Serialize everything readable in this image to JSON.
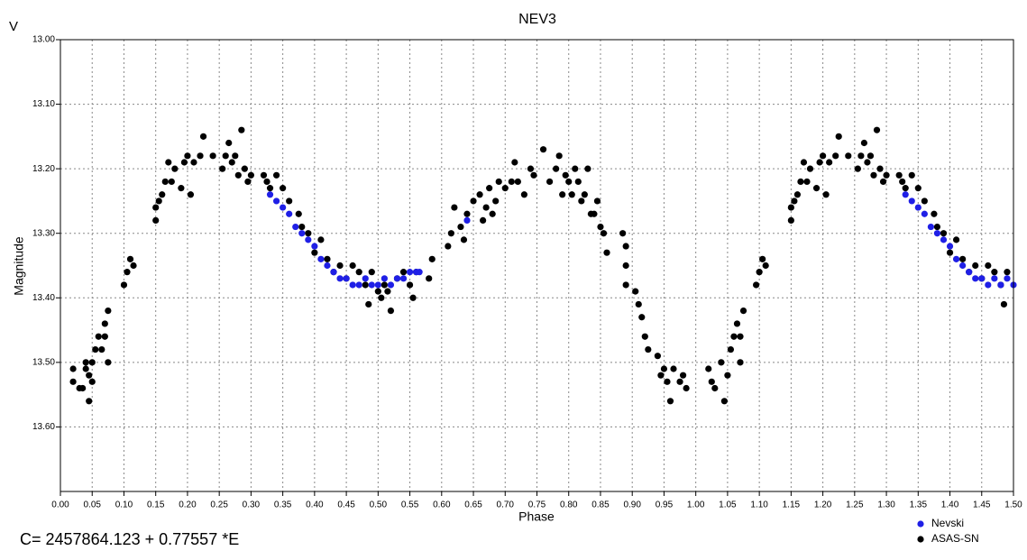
{
  "chart_data": {
    "type": "scatter",
    "title": "NEV3",
    "corner_label": "V",
    "xlabel": "Phase",
    "ylabel": "Magnitude",
    "annotation": "C= 2457864.123 + 0.77557 *E",
    "xlim": [
      0,
      1.5
    ],
    "ylim": [
      13.0,
      13.7
    ],
    "y_inverted": true,
    "grid": true,
    "legend": "bottom-right",
    "xticks": [
      {
        "value": 0,
        "label": "0.00"
      },
      {
        "value": 0.05,
        "label": "0.05"
      },
      {
        "value": 0.1,
        "label": "0.10"
      },
      {
        "value": 0.15,
        "label": "0.15"
      },
      {
        "value": 0.2,
        "label": "0.20"
      },
      {
        "value": 0.25,
        "label": "0.25"
      },
      {
        "value": 0.3,
        "label": "0.30"
      },
      {
        "value": 0.35,
        "label": "0.35"
      },
      {
        "value": 0.4,
        "label": "0.40"
      },
      {
        "value": 0.45,
        "label": "0.45"
      },
      {
        "value": 0.5,
        "label": "0.50"
      },
      {
        "value": 0.55,
        "label": "0.55"
      },
      {
        "value": 0.6,
        "label": "0.60"
      },
      {
        "value": 0.65,
        "label": "0.65"
      },
      {
        "value": 0.7,
        "label": "0.70"
      },
      {
        "value": 0.75,
        "label": "0.75"
      },
      {
        "value": 0.8,
        "label": "0.80"
      },
      {
        "value": 0.85,
        "label": "0.85"
      },
      {
        "value": 0.9,
        "label": "0.90"
      },
      {
        "value": 0.95,
        "label": "0.95"
      },
      {
        "value": 1.0,
        "label": "1.00"
      },
      {
        "value": 1.05,
        "label": "1.05"
      },
      {
        "value": 1.1,
        "label": "1.10"
      },
      {
        "value": 1.15,
        "label": "1.15"
      },
      {
        "value": 1.2,
        "label": "1.20"
      },
      {
        "value": 1.25,
        "label": "1.25"
      },
      {
        "value": 1.3,
        "label": "1.30"
      },
      {
        "value": 1.35,
        "label": "1.35"
      },
      {
        "value": 1.4,
        "label": "1.40"
      },
      {
        "value": 1.45,
        "label": "1.45"
      },
      {
        "value": 1.5,
        "label": "1.50"
      }
    ],
    "yticks": [
      {
        "value": 13.0,
        "label": "13.00"
      },
      {
        "value": 13.1,
        "label": "13.10"
      },
      {
        "value": 13.2,
        "label": "13.20"
      },
      {
        "value": 13.3,
        "label": "13.30"
      },
      {
        "value": 13.4,
        "label": "13.40"
      },
      {
        "value": 13.5,
        "label": "13.50"
      },
      {
        "value": 13.6,
        "label": "13.60"
      }
    ],
    "series": [
      {
        "name": "Nevski",
        "color": "#1f1fe6",
        "x": [
          0.33,
          0.34,
          0.35,
          0.36,
          0.37,
          0.38,
          0.39,
          0.4,
          0.41,
          0.42,
          0.43,
          0.44,
          0.45,
          0.46,
          0.47,
          0.48,
          0.49,
          0.5,
          0.51,
          0.52,
          0.53,
          0.54,
          0.55,
          0.56,
          0.565,
          0.64,
          1.33,
          1.34,
          1.35,
          1.36,
          1.37,
          1.38,
          1.39,
          1.4,
          1.41,
          1.42,
          1.43,
          1.44,
          1.45,
          1.46,
          1.47,
          1.48,
          1.49,
          1.5
        ],
        "values": [
          13.24,
          13.25,
          13.26,
          13.27,
          13.29,
          13.3,
          13.31,
          13.32,
          13.34,
          13.35,
          13.36,
          13.37,
          13.37,
          13.38,
          13.38,
          13.37,
          13.38,
          13.38,
          13.37,
          13.38,
          13.37,
          13.37,
          13.36,
          13.36,
          13.36,
          13.28,
          13.24,
          13.25,
          13.26,
          13.27,
          13.29,
          13.3,
          13.31,
          13.32,
          13.34,
          13.35,
          13.36,
          13.37,
          13.37,
          13.38,
          13.37,
          13.38,
          13.37,
          13.38
        ]
      },
      {
        "name": "ASAS-SN",
        "color": "#000000",
        "x": [
          0.02,
          0.02,
          0.03,
          0.035,
          0.04,
          0.04,
          0.045,
          0.045,
          0.05,
          0.05,
          0.055,
          0.06,
          0.065,
          0.07,
          0.07,
          0.075,
          0.075,
          0.1,
          0.105,
          0.11,
          0.115,
          0.15,
          0.15,
          0.155,
          0.16,
          0.165,
          0.17,
          0.175,
          0.18,
          0.19,
          0.195,
          0.2,
          0.205,
          0.21,
          0.22,
          0.225,
          0.24,
          0.255,
          0.26,
          0.265,
          0.27,
          0.275,
          0.28,
          0.285,
          0.29,
          0.295,
          0.3,
          0.32,
          0.325,
          0.33,
          0.34,
          0.35,
          0.36,
          0.375,
          0.38,
          0.39,
          0.4,
          0.41,
          0.42,
          0.43,
          0.44,
          0.45,
          0.46,
          0.47,
          0.48,
          0.485,
          0.49,
          0.5,
          0.505,
          0.51,
          0.515,
          0.52,
          0.53,
          0.54,
          0.55,
          0.555,
          0.56,
          0.58,
          0.585,
          0.61,
          0.615,
          0.62,
          0.63,
          0.635,
          0.64,
          0.65,
          0.66,
          0.665,
          0.67,
          0.675,
          0.68,
          0.685,
          0.69,
          0.7,
          0.71,
          0.715,
          0.72,
          0.73,
          0.74,
          0.745,
          0.76,
          0.77,
          0.78,
          0.785,
          0.79,
          0.795,
          0.8,
          0.805,
          0.81,
          0.815,
          0.82,
          0.825,
          0.83,
          0.835,
          0.84,
          0.845,
          0.85,
          0.855,
          0.86,
          0.885,
          0.89,
          0.89,
          0.89,
          0.905,
          0.91,
          0.915,
          0.92,
          0.925,
          0.94,
          0.945,
          0.95,
          0.955,
          0.96,
          0.965,
          0.975,
          0.98,
          0.985,
          1.02,
          1.025,
          1.03,
          1.04,
          1.045,
          1.05,
          1.055,
          1.06,
          1.065,
          1.07,
          1.07,
          1.075,
          1.095,
          1.1,
          1.105,
          1.11,
          1.15,
          1.15,
          1.155,
          1.16,
          1.165,
          1.17,
          1.175,
          1.18,
          1.19,
          1.195,
          1.2,
          1.205,
          1.21,
          1.22,
          1.225,
          1.24,
          1.255,
          1.26,
          1.265,
          1.27,
          1.275,
          1.28,
          1.285,
          1.29,
          1.295,
          1.3,
          1.32,
          1.325,
          1.33,
          1.34,
          1.35,
          1.36,
          1.375,
          1.38,
          1.39,
          1.4,
          1.41,
          1.42,
          1.43,
          1.44,
          1.45,
          1.46,
          1.47,
          1.48,
          1.485,
          1.49
        ],
        "values": [
          13.51,
          13.53,
          13.54,
          13.54,
          13.51,
          13.5,
          13.52,
          13.56,
          13.53,
          13.5,
          13.48,
          13.46,
          13.48,
          13.46,
          13.44,
          13.42,
          13.5,
          13.38,
          13.36,
          13.34,
          13.35,
          13.26,
          13.28,
          13.25,
          13.24,
          13.22,
          13.19,
          13.22,
          13.2,
          13.23,
          13.19,
          13.18,
          13.24,
          13.19,
          13.18,
          13.15,
          13.18,
          13.2,
          13.18,
          13.16,
          13.19,
          13.18,
          13.21,
          13.14,
          13.2,
          13.22,
          13.21,
          13.21,
          13.22,
          13.23,
          13.21,
          13.23,
          13.25,
          13.27,
          13.29,
          13.3,
          13.33,
          13.31,
          13.34,
          13.36,
          13.35,
          13.37,
          13.35,
          13.36,
          13.38,
          13.41,
          13.36,
          13.39,
          13.4,
          13.38,
          13.39,
          13.42,
          13.37,
          13.36,
          13.38,
          13.4,
          13.36,
          13.37,
          13.34,
          13.32,
          13.3,
          13.26,
          13.29,
          13.31,
          13.27,
          13.25,
          13.24,
          13.28,
          13.26,
          13.23,
          13.27,
          13.25,
          13.22,
          13.23,
          13.22,
          13.19,
          13.22,
          13.24,
          13.2,
          13.21,
          13.17,
          13.22,
          13.2,
          13.18,
          13.24,
          13.21,
          13.22,
          13.24,
          13.2,
          13.22,
          13.25,
          13.24,
          13.2,
          13.27,
          13.27,
          13.25,
          13.29,
          13.3,
          13.33,
          13.3,
          13.32,
          13.35,
          13.38,
          13.39,
          13.41,
          13.43,
          13.46,
          13.48,
          13.49,
          13.52,
          13.51,
          13.53,
          13.56,
          13.51,
          13.53,
          13.52,
          13.54,
          13.51,
          13.53,
          13.54,
          13.5,
          13.56,
          13.52,
          13.48,
          13.46,
          13.44,
          13.46,
          13.5,
          13.42,
          13.38,
          13.36,
          13.34,
          13.35,
          13.26,
          13.28,
          13.25,
          13.24,
          13.22,
          13.19,
          13.22,
          13.2,
          13.23,
          13.19,
          13.18,
          13.24,
          13.19,
          13.18,
          13.15,
          13.18,
          13.2,
          13.18,
          13.16,
          13.19,
          13.18,
          13.21,
          13.14,
          13.2,
          13.22,
          13.21,
          13.21,
          13.22,
          13.23,
          13.21,
          13.23,
          13.25,
          13.27,
          13.29,
          13.3,
          13.33,
          13.31,
          13.34,
          13.36,
          13.35,
          13.37,
          13.35,
          13.36,
          13.38,
          13.41,
          13.36
        ]
      }
    ]
  }
}
